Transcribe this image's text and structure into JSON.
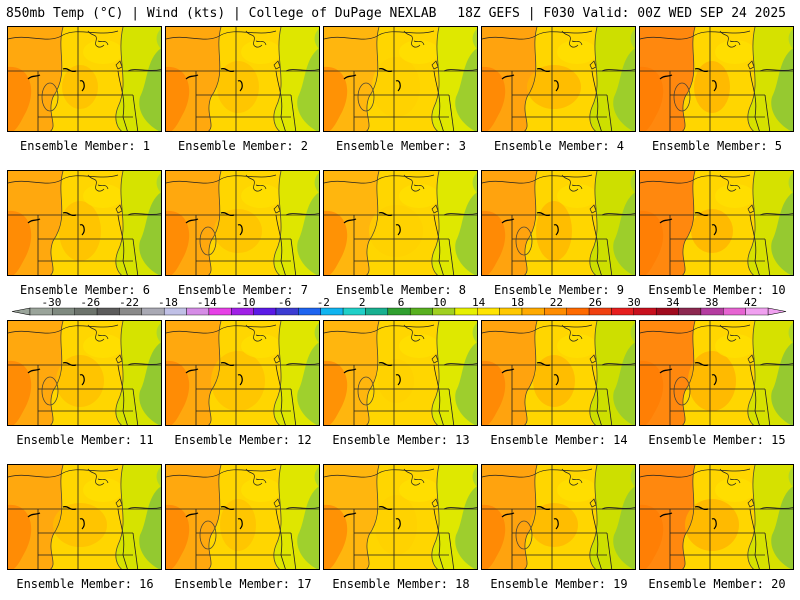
{
  "header": {
    "title_left": "850mb Temp (°C) | Wind (kts) | College of DuPage NEXLAB",
    "title_right": "18Z GEFS | F030 Valid: 00Z WED SEP 24 2025"
  },
  "members": [
    {
      "label": "Ensemble Member: 1"
    },
    {
      "label": "Ensemble Member: 2"
    },
    {
      "label": "Ensemble Member: 3"
    },
    {
      "label": "Ensemble Member: 4"
    },
    {
      "label": "Ensemble Member: 5"
    },
    {
      "label": "Ensemble Member: 6"
    },
    {
      "label": "Ensemble Member: 7"
    },
    {
      "label": "Ensemble Member: 8"
    },
    {
      "label": "Ensemble Member: 9"
    },
    {
      "label": "Ensemble Member: 10"
    },
    {
      "label": "Ensemble Member: 11"
    },
    {
      "label": "Ensemble Member: 12"
    },
    {
      "label": "Ensemble Member: 13"
    },
    {
      "label": "Ensemble Member: 14"
    },
    {
      "label": "Ensemble Member: 15"
    },
    {
      "label": "Ensemble Member: 16"
    },
    {
      "label": "Ensemble Member: 17"
    },
    {
      "label": "Ensemble Member: 18"
    },
    {
      "label": "Ensemble Member: 19"
    },
    {
      "label": "Ensemble Member: 20"
    }
  ],
  "legend": {
    "ticks": [
      "-30",
      "-26",
      "-22",
      "-18",
      "-14",
      "-10",
      "-6",
      "-2",
      "2",
      "6",
      "10",
      "14",
      "18",
      "22",
      "26",
      "30",
      "34",
      "38",
      "42"
    ],
    "colors": [
      "#9aa49a",
      "#7f8a80",
      "#6c736c",
      "#5c5c5c",
      "#8a8a8a",
      "#a9a9b4",
      "#c0c0e6",
      "#d58ce6",
      "#e640e6",
      "#a020e6",
      "#5a1ae6",
      "#3c3cd2",
      "#1e64f0",
      "#10b4f0",
      "#20d0c8",
      "#18b090",
      "#30a030",
      "#58b020",
      "#a0d020",
      "#e6f000",
      "#ffe400",
      "#ffc800",
      "#ffaa00",
      "#ff8c00",
      "#ff6a00",
      "#f04010",
      "#e61e1e",
      "#c8101e",
      "#a00a1e",
      "#8c2850",
      "#b43ca0",
      "#e664d2",
      "#f0a0f0"
    ]
  }
}
